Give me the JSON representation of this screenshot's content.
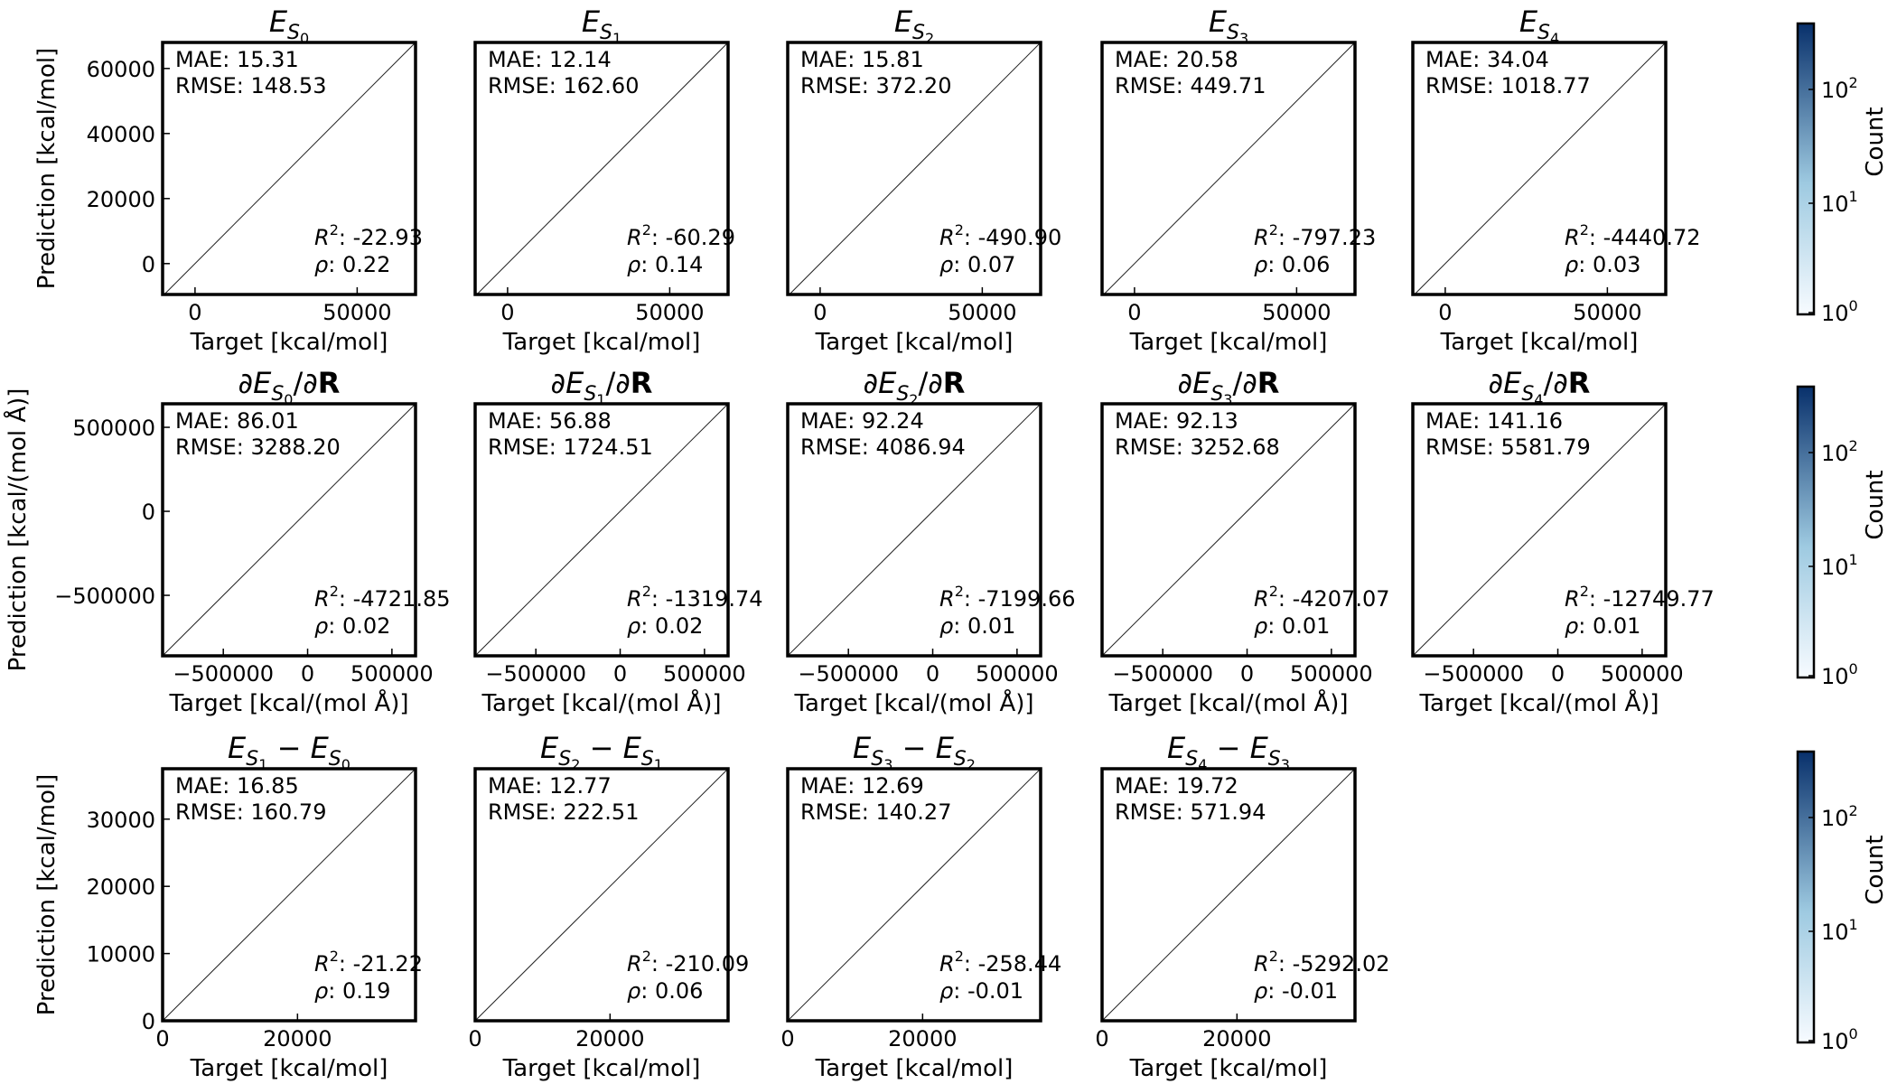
{
  "figure": {
    "colorbar_label": "Count",
    "colorbar_ticks": [
      {
        "base": "10",
        "exp": "2"
      },
      {
        "base": "10",
        "exp": "1"
      },
      {
        "base": "10",
        "exp": "0"
      }
    ],
    "colorbar_colors": {
      "low": "#f7fbff",
      "high": "#08306b"
    }
  },
  "chart_data": [
    {
      "type": "scatter",
      "grid": false,
      "title": {
        "main": "E",
        "sub": "S",
        "subsub": "0"
      },
      "xlabel": "Target [kcal/mol]",
      "ylabel": "Prediction [kcal/mol]",
      "xlim": [
        -10000,
        68000
      ],
      "ylim": [
        -9500,
        68000
      ],
      "xticks": [
        {
          "v": 0,
          "t": "0"
        },
        {
          "v": 50000,
          "t": "50000"
        }
      ],
      "yticks": [
        {
          "v": 0,
          "t": "0"
        },
        {
          "v": 20000,
          "t": "20000"
        },
        {
          "v": 40000,
          "t": "40000"
        },
        {
          "v": 60000,
          "t": "60000"
        }
      ],
      "stats": {
        "mae": "MAE: 15.31",
        "rmse": "RMSE: 148.53",
        "r2": ": -22.93",
        "rho": ": 0.22"
      }
    },
    {
      "type": "scatter",
      "grid": false,
      "title": {
        "main": "E",
        "sub": "S",
        "subsub": "1"
      },
      "xlabel": "Target [kcal/mol]",
      "ylabel": "",
      "xlim": [
        -10000,
        68000
      ],
      "ylim": [
        -9500,
        68000
      ],
      "xticks": [
        {
          "v": 0,
          "t": "0"
        },
        {
          "v": 50000,
          "t": "50000"
        }
      ],
      "yticks": [],
      "stats": {
        "mae": "MAE: 12.14",
        "rmse": "RMSE: 162.60",
        "r2": ": -60.29",
        "rho": ": 0.14"
      }
    },
    {
      "type": "scatter",
      "grid": false,
      "title": {
        "main": "E",
        "sub": "S",
        "subsub": "2"
      },
      "xlabel": "Target [kcal/mol]",
      "ylabel": "",
      "xlim": [
        -10000,
        68000
      ],
      "ylim": [
        -9500,
        68000
      ],
      "xticks": [
        {
          "v": 0,
          "t": "0"
        },
        {
          "v": 50000,
          "t": "50000"
        }
      ],
      "yticks": [],
      "stats": {
        "mae": "MAE: 15.81",
        "rmse": "RMSE: 372.20",
        "r2": ": -490.90",
        "rho": ": 0.07"
      }
    },
    {
      "type": "scatter",
      "grid": false,
      "title": {
        "main": "E",
        "sub": "S",
        "subsub": "3"
      },
      "xlabel": "Target [kcal/mol]",
      "ylabel": "",
      "xlim": [
        -10000,
        68000
      ],
      "ylim": [
        -9500,
        68000
      ],
      "xticks": [
        {
          "v": 0,
          "t": "0"
        },
        {
          "v": 50000,
          "t": "50000"
        }
      ],
      "yticks": [],
      "stats": {
        "mae": "MAE: 20.58",
        "rmse": "RMSE: 449.71",
        "r2": ": -797.23",
        "rho": ": 0.06"
      }
    },
    {
      "type": "scatter",
      "grid": false,
      "title": {
        "main": "E",
        "sub": "S",
        "subsub": "4"
      },
      "xlabel": "Target [kcal/mol]",
      "ylabel": "",
      "xlim": [
        -10000,
        68000
      ],
      "ylim": [
        -9500,
        68000
      ],
      "xticks": [
        {
          "v": 0,
          "t": "0"
        },
        {
          "v": 50000,
          "t": "50000"
        }
      ],
      "yticks": [],
      "stats": {
        "mae": "MAE: 34.04",
        "rmse": "RMSE: 1018.77",
        "r2": ": -4440.72",
        "rho": ": 0.03"
      }
    },
    {
      "type": "scatter",
      "grid": false,
      "title": {
        "prefix": "∂",
        "main": "E",
        "sub": "S",
        "subsub": "0",
        "suffix": "/∂",
        "bold": "R"
      },
      "xlabel": "Target [kcal/(mol Å)]",
      "ylabel": "Prediction [kcal/(mol Å)]",
      "xlim": [
        -860000,
        640000
      ],
      "ylim": [
        -860000,
        640000
      ],
      "xticks": [
        {
          "v": -500000,
          "t": "−500000"
        },
        {
          "v": 0,
          "t": "0"
        },
        {
          "v": 500000,
          "t": "500000"
        }
      ],
      "yticks": [
        {
          "v": -500000,
          "t": "−500000"
        },
        {
          "v": 0,
          "t": "0"
        },
        {
          "v": 500000,
          "t": "500000"
        }
      ],
      "stats": {
        "mae": "MAE: 86.01",
        "rmse": "RMSE: 3288.20",
        "r2": ": -4721.85",
        "rho": ": 0.02"
      }
    },
    {
      "type": "scatter",
      "grid": false,
      "title": {
        "prefix": "∂",
        "main": "E",
        "sub": "S",
        "subsub": "1",
        "suffix": "/∂",
        "bold": "R"
      },
      "xlabel": "Target [kcal/(mol Å)]",
      "ylabel": "",
      "xlim": [
        -860000,
        640000
      ],
      "ylim": [
        -860000,
        640000
      ],
      "xticks": [
        {
          "v": -500000,
          "t": "−500000"
        },
        {
          "v": 0,
          "t": "0"
        },
        {
          "v": 500000,
          "t": "500000"
        }
      ],
      "yticks": [],
      "stats": {
        "mae": "MAE: 56.88",
        "rmse": "RMSE: 1724.51",
        "r2": ": -1319.74",
        "rho": ": 0.02"
      }
    },
    {
      "type": "scatter",
      "grid": false,
      "title": {
        "prefix": "∂",
        "main": "E",
        "sub": "S",
        "subsub": "2",
        "suffix": "/∂",
        "bold": "R"
      },
      "xlabel": "Target [kcal/(mol Å)]",
      "ylabel": "",
      "xlim": [
        -860000,
        640000
      ],
      "ylim": [
        -860000,
        640000
      ],
      "xticks": [
        {
          "v": -500000,
          "t": "−500000"
        },
        {
          "v": 0,
          "t": "0"
        },
        {
          "v": 500000,
          "t": "500000"
        }
      ],
      "yticks": [],
      "stats": {
        "mae": "MAE: 92.24",
        "rmse": "RMSE: 4086.94",
        "r2": ": -7199.66",
        "rho": ": 0.01"
      }
    },
    {
      "type": "scatter",
      "grid": false,
      "title": {
        "prefix": "∂",
        "main": "E",
        "sub": "S",
        "subsub": "3",
        "suffix": "/∂",
        "bold": "R"
      },
      "xlabel": "Target [kcal/(mol Å)]",
      "ylabel": "",
      "xlim": [
        -860000,
        640000
      ],
      "ylim": [
        -860000,
        640000
      ],
      "xticks": [
        {
          "v": -500000,
          "t": "−500000"
        },
        {
          "v": 0,
          "t": "0"
        },
        {
          "v": 500000,
          "t": "500000"
        }
      ],
      "yticks": [],
      "stats": {
        "mae": "MAE: 92.13",
        "rmse": "RMSE: 3252.68",
        "r2": ": -4207.07",
        "rho": ": 0.01"
      }
    },
    {
      "type": "scatter",
      "grid": false,
      "title": {
        "prefix": "∂",
        "main": "E",
        "sub": "S",
        "subsub": "4",
        "suffix": "/∂",
        "bold": "R"
      },
      "xlabel": "Target [kcal/(mol Å)]",
      "ylabel": "",
      "xlim": [
        -860000,
        640000
      ],
      "ylim": [
        -860000,
        640000
      ],
      "xticks": [
        {
          "v": -500000,
          "t": "−500000"
        },
        {
          "v": 0,
          "t": "0"
        },
        {
          "v": 500000,
          "t": "500000"
        }
      ],
      "yticks": [],
      "stats": {
        "mae": "MAE: 141.16",
        "rmse": "RMSE: 5581.79",
        "r2": ": -12749.77",
        "rho": ": 0.01"
      }
    },
    {
      "type": "scatter",
      "grid": false,
      "title": {
        "main": "E",
        "sub": "S",
        "subsub": "1",
        "sep": " − ",
        "main2": "E",
        "sub2": "S",
        "subsub2": "0"
      },
      "xlabel": "Target [kcal/mol]",
      "ylabel": "Prediction [kcal/mol]",
      "xlim": [
        0,
        37500
      ],
      "ylim": [
        0,
        37500
      ],
      "xticks": [
        {
          "v": 0,
          "t": "0"
        },
        {
          "v": 20000,
          "t": "20000"
        }
      ],
      "yticks": [
        {
          "v": 0,
          "t": "0"
        },
        {
          "v": 10000,
          "t": "10000"
        },
        {
          "v": 20000,
          "t": "20000"
        },
        {
          "v": 30000,
          "t": "30000"
        }
      ],
      "stats": {
        "mae": "MAE: 16.85",
        "rmse": "RMSE: 160.79",
        "r2": ": -21.22",
        "rho": ": 0.19"
      }
    },
    {
      "type": "scatter",
      "grid": false,
      "title": {
        "main": "E",
        "sub": "S",
        "subsub": "2",
        "sep": " − ",
        "main2": "E",
        "sub2": "S",
        "subsub2": "1"
      },
      "xlabel": "Target [kcal/mol]",
      "ylabel": "",
      "xlim": [
        0,
        37500
      ],
      "ylim": [
        0,
        37500
      ],
      "xticks": [
        {
          "v": 0,
          "t": "0"
        },
        {
          "v": 20000,
          "t": "20000"
        }
      ],
      "yticks": [],
      "stats": {
        "mae": "MAE: 12.77",
        "rmse": "RMSE: 222.51",
        "r2": ": -210.09",
        "rho": ": 0.06"
      }
    },
    {
      "type": "scatter",
      "grid": false,
      "title": {
        "main": "E",
        "sub": "S",
        "subsub": "3",
        "sep": " − ",
        "main2": "E",
        "sub2": "S",
        "subsub2": "2"
      },
      "xlabel": "Target [kcal/mol]",
      "ylabel": "",
      "xlim": [
        0,
        37500
      ],
      "ylim": [
        0,
        37500
      ],
      "xticks": [
        {
          "v": 0,
          "t": "0"
        },
        {
          "v": 20000,
          "t": "20000"
        }
      ],
      "yticks": [],
      "stats": {
        "mae": "MAE: 12.69",
        "rmse": "RMSE: 140.27",
        "r2": ": -258.44",
        "rho": ": -0.01"
      }
    },
    {
      "type": "scatter",
      "grid": false,
      "title": {
        "main": "E",
        "sub": "S",
        "subsub": "4",
        "sep": " − ",
        "main2": "E",
        "sub2": "S",
        "subsub2": "3"
      },
      "xlabel": "Target [kcal/mol]",
      "ylabel": "",
      "xlim": [
        0,
        37500
      ],
      "ylim": [
        0,
        37500
      ],
      "xticks": [
        {
          "v": 0,
          "t": "0"
        },
        {
          "v": 20000,
          "t": "20000"
        }
      ],
      "yticks": [],
      "stats": {
        "mae": "MAE: 19.72",
        "rmse": "RMSE: 571.94",
        "r2": ": -5292.02",
        "rho": ": -0.01"
      }
    }
  ]
}
